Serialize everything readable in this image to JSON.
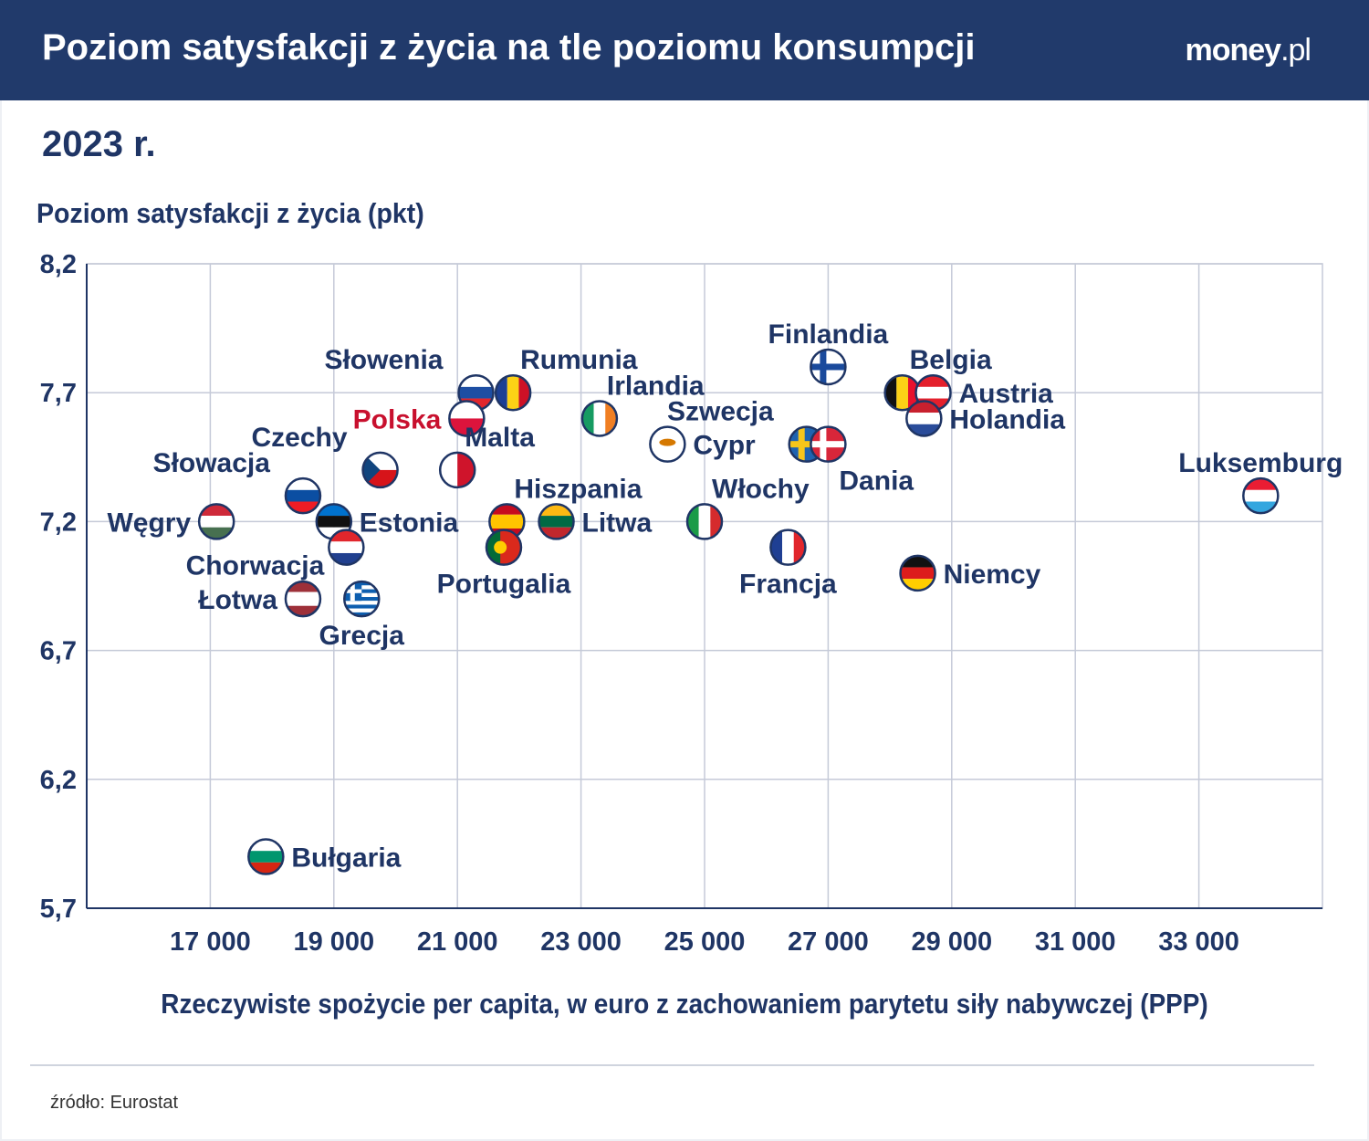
{
  "header": {
    "title": "Poziom satysfakcji z życia na tle poziomu konsumpcji",
    "logo_main": "money",
    "logo_suffix": ".pl"
  },
  "subtitle": "2023 r.",
  "source": "źródło: Eurostat",
  "colors": {
    "header_bg": "#213a6b",
    "text": "#1f3565",
    "highlight": "#c8102e",
    "grid": "#c5cad8"
  },
  "chart_data": {
    "type": "scatter",
    "xlabel": "Rzeczywiste spożycie per capita, w euro z zachowaniem parytetu siły nabywczej (PPP)",
    "ylabel": "Poziom satysfakcji z życia (pkt)",
    "xlim": [
      15000,
      35000
    ],
    "ylim": [
      5.7,
      8.2
    ],
    "xticks": [
      17000,
      19000,
      21000,
      23000,
      25000,
      27000,
      29000,
      31000,
      33000
    ],
    "xtick_labels": [
      "17 000",
      "19 000",
      "21 000",
      "23 000",
      "25 000",
      "27 000",
      "29 000",
      "31 000",
      "33 000"
    ],
    "yticks": [
      5.7,
      6.2,
      6.7,
      7.2,
      7.7,
      8.2
    ],
    "ytick_labels": [
      "5,7",
      "6,2",
      "6,7",
      "7,2",
      "7,7",
      "8,2"
    ],
    "grid": true,
    "points": [
      {
        "name": "Finlandia",
        "x": 27000,
        "y": 7.8,
        "label": "top",
        "flag": {
          "type": "nordic",
          "colors": [
            "#ffffff",
            "#1a4a9c"
          ]
        }
      },
      {
        "name": "Belgia",
        "x": 28200,
        "y": 7.7,
        "label": "top-right",
        "flag": {
          "type": "v",
          "colors": [
            "#111111",
            "#fcd116",
            "#e8112d"
          ]
        }
      },
      {
        "name": "Austria",
        "x": 28700,
        "y": 7.7,
        "label": "right",
        "flag": {
          "type": "h",
          "colors": [
            "#e4202c",
            "#ffffff",
            "#e4202c"
          ]
        }
      },
      {
        "name": "Holandia",
        "x": 28550,
        "y": 7.6,
        "label": "right",
        "flag": {
          "type": "h",
          "colors": [
            "#c8202e",
            "#ffffff",
            "#2a4c9a"
          ]
        }
      },
      {
        "name": "Szwecja",
        "x": 26650,
        "y": 7.5,
        "label": "top-left",
        "flag": {
          "type": "nordic",
          "colors": [
            "#1f63b0",
            "#f7c61a"
          ]
        }
      },
      {
        "name": "Dania",
        "x": 27000,
        "y": 7.5,
        "label": "bottom-right",
        "flag": {
          "type": "nordic",
          "colors": [
            "#d8263a",
            "#ffffff"
          ]
        }
      },
      {
        "name": "Luksemburg",
        "x": 34000,
        "y": 7.3,
        "label": "top",
        "flag": {
          "type": "h",
          "colors": [
            "#ea1d33",
            "#ffffff",
            "#34a6df"
          ]
        }
      },
      {
        "name": "Niemcy",
        "x": 28450,
        "y": 7.0,
        "label": "right",
        "flag": {
          "type": "h",
          "colors": [
            "#111111",
            "#dd1c1c",
            "#ffce00"
          ]
        }
      },
      {
        "name": "Francja",
        "x": 26350,
        "y": 7.1,
        "label": "bottom",
        "flag": {
          "type": "v",
          "colors": [
            "#1f3f93",
            "#ffffff",
            "#e1262c"
          ]
        }
      },
      {
        "name": "Włochy",
        "x": 25000,
        "y": 7.2,
        "label": "top-right",
        "flag": {
          "type": "v",
          "colors": [
            "#1a9b47",
            "#ffffff",
            "#d52b2d"
          ]
        }
      },
      {
        "name": "Cypr",
        "x": 24400,
        "y": 7.5,
        "label": "right",
        "flag": {
          "type": "cyprus",
          "colors": [
            "#ffffff",
            "#d57800"
          ]
        }
      },
      {
        "name": "Irlandia",
        "x": 23300,
        "y": 7.6,
        "label": "top-right",
        "flag": {
          "type": "v",
          "colors": [
            "#169b62",
            "#ffffff",
            "#f07f23"
          ]
        }
      },
      {
        "name": "Rumunia",
        "x": 21900,
        "y": 7.7,
        "label": "top-right",
        "flag": {
          "type": "v",
          "colors": [
            "#1c3f94",
            "#fcd116",
            "#ce1126"
          ]
        }
      },
      {
        "name": "Słowenia",
        "x": 21300,
        "y": 7.7,
        "label": "top-left",
        "flag": {
          "type": "h",
          "colors": [
            "#ffffff",
            "#1d4ea3",
            "#e1262c"
          ]
        }
      },
      {
        "name": "Polska",
        "x": 21150,
        "y": 7.6,
        "label": "left",
        "highlight": true,
        "flag": {
          "type": "h",
          "colors": [
            "#ffffff",
            "#dc143c"
          ]
        }
      },
      {
        "name": "Malta",
        "x": 21000,
        "y": 7.4,
        "label": "top-right",
        "flag": {
          "type": "v",
          "colors": [
            "#ffffff",
            "#cf142b"
          ]
        }
      },
      {
        "name": "Czechy",
        "x": 19750,
        "y": 7.4,
        "label": "top-left",
        "flag": {
          "type": "czech",
          "colors": [
            "#ffffff",
            "#d7141a",
            "#11457e"
          ]
        }
      },
      {
        "name": "Słowacja",
        "x": 18500,
        "y": 7.3,
        "label": "top-left",
        "flag": {
          "type": "h",
          "colors": [
            "#ffffff",
            "#0b4ea2",
            "#ee1c25"
          ]
        }
      },
      {
        "name": "Węgry",
        "x": 17100,
        "y": 7.2,
        "label": "left",
        "flag": {
          "type": "h",
          "colors": [
            "#ce2939",
            "#ffffff",
            "#477050"
          ]
        }
      },
      {
        "name": "Estonia",
        "x": 19000,
        "y": 7.2,
        "label": "right",
        "flag": {
          "type": "h",
          "colors": [
            "#0072ce",
            "#111111",
            "#ffffff"
          ]
        }
      },
      {
        "name": "Chorwacja",
        "x": 19200,
        "y": 7.1,
        "label": "bottom-left",
        "flag": {
          "type": "h",
          "colors": [
            "#e1262c",
            "#ffffff",
            "#21408f"
          ]
        }
      },
      {
        "name": "Łotwa",
        "x": 18500,
        "y": 6.9,
        "label": "left",
        "flag": {
          "type": "h3",
          "colors": [
            "#9e3039",
            "#ffffff",
            "#9e3039"
          ]
        }
      },
      {
        "name": "Grecja",
        "x": 19450,
        "y": 6.9,
        "label": "bottom",
        "flag": {
          "type": "stripes",
          "colors": [
            "#0d5eaf",
            "#ffffff"
          ]
        }
      },
      {
        "name": "Hiszpania",
        "x": 21800,
        "y": 7.2,
        "label": "top-right",
        "flag": {
          "type": "h3",
          "colors": [
            "#c60b1e",
            "#ffc400",
            "#c60b1e"
          ]
        }
      },
      {
        "name": "Litwa",
        "x": 22600,
        "y": 7.2,
        "label": "right",
        "flag": {
          "type": "h",
          "colors": [
            "#fdb913",
            "#006a44",
            "#c1272d"
          ]
        }
      },
      {
        "name": "Portugalia",
        "x": 21750,
        "y": 7.1,
        "label": "bottom",
        "flag": {
          "type": "vsplit",
          "colors": [
            "#046a38",
            "#da291c"
          ]
        }
      },
      {
        "name": "Bułgaria",
        "x": 17900,
        "y": 5.9,
        "label": "right",
        "flag": {
          "type": "h",
          "colors": [
            "#ffffff",
            "#00966e",
            "#d62612"
          ]
        }
      }
    ]
  }
}
